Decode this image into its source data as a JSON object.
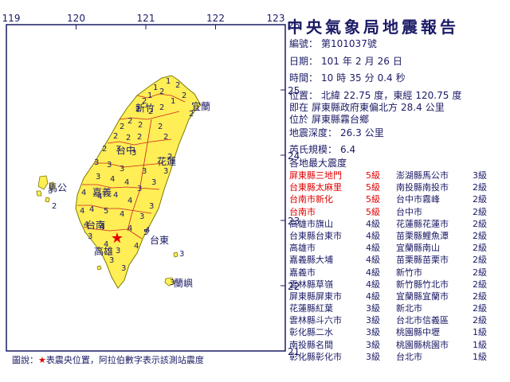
{
  "title": "中央氣象局地震報告",
  "report": {
    "number_label": "編號：",
    "number": "第101037號",
    "date_label": "日期：",
    "year": "101",
    "year_unit": "年",
    "month": "2",
    "month_unit": "月",
    "day": "26",
    "day_unit": "日",
    "time_label": "時間：",
    "hour": "10",
    "hour_unit": "時",
    "minute": "35",
    "minute_unit": "分",
    "second": "0.4",
    "second_unit": "秒",
    "position_label": "位置：",
    "lat_text": "北緯",
    "lat": "22.75",
    "lat_unit": "度，東經",
    "lon": "120.75",
    "lon_unit": "度",
    "rel_prefix": "即在",
    "rel_place": "屏東縣政府東偏北方",
    "rel_dist": "28.4",
    "rel_unit": "公里",
    "at_prefix": "位於",
    "at_place": "屏東縣霧台鄉",
    "depth_label": "地震深度：",
    "depth": "26.3",
    "depth_unit": "公里",
    "mag_label": "芮氏規模：",
    "magnitude": "6.4",
    "intensity_header": "各地最大震度"
  },
  "intensities": [
    {
      "l_name": "屏東縣三地門",
      "l_val": "5級",
      "l_red": true,
      "r_name": "澎湖縣馬公市",
      "r_val": "3級"
    },
    {
      "l_name": "台東縣太麻里",
      "l_val": "5級",
      "l_red": true,
      "r_name": "南投縣南投市",
      "r_val": "2級"
    },
    {
      "l_name": "台南市新化",
      "l_val": "5級",
      "l_red": true,
      "r_name": "台中市霧峰",
      "r_val": "2級"
    },
    {
      "l_name": "台南市",
      "l_val": "5級",
      "l_red": true,
      "r_name": "台中市",
      "r_val": "2級"
    },
    {
      "l_name": "高雄市旗山",
      "l_val": "4級",
      "l_red": false,
      "r_name": "花蓮縣花蓮市",
      "r_val": "2級"
    },
    {
      "l_name": "台東縣台東市",
      "l_val": "4級",
      "l_red": false,
      "r_name": "苗栗縣鯉魚潭",
      "r_val": "2級"
    },
    {
      "l_name": "高雄市",
      "l_val": "4級",
      "l_red": false,
      "r_name": "宜蘭縣南山",
      "r_val": "2級"
    },
    {
      "l_name": "嘉義縣大埔",
      "l_val": "4級",
      "l_red": false,
      "r_name": "苗栗縣苗栗市",
      "r_val": "2級"
    },
    {
      "l_name": "嘉義市",
      "l_val": "4級",
      "l_red": false,
      "r_name": "新竹市",
      "r_val": "2級"
    },
    {
      "l_name": "雲林縣草嶺",
      "l_val": "4級",
      "l_red": false,
      "r_name": "新竹縣竹北市",
      "r_val": "2級"
    },
    {
      "l_name": "屏東縣屏東市",
      "l_val": "4級",
      "l_red": false,
      "r_name": "宜蘭縣宜蘭市",
      "r_val": "2級"
    },
    {
      "l_name": "花蓮縣紅葉",
      "l_val": "3級",
      "l_red": false,
      "r_name": "新北市",
      "r_val": "2級"
    },
    {
      "l_name": "雲林縣斗六市",
      "l_val": "3級",
      "l_red": false,
      "r_name": "台北市信義區",
      "r_val": "2級"
    },
    {
      "l_name": "彰化縣二水",
      "l_val": "3級",
      "l_red": false,
      "r_name": "桃園縣中壢",
      "r_val": "1級"
    },
    {
      "l_name": "南投縣名間",
      "l_val": "3級",
      "l_red": false,
      "r_name": "桃園縣桃園市",
      "r_val": "1級"
    },
    {
      "l_name": "彰化縣彰化市",
      "l_val": "3級",
      "l_red": false,
      "r_name": "台北市",
      "r_val": "1級"
    }
  ],
  "map": {
    "lon_ticks": [
      "119",
      "120",
      "121",
      "122",
      "123"
    ],
    "lat_ticks": [
      "26",
      "25",
      "24",
      "23",
      "22",
      "21"
    ],
    "lon_range": [
      119,
      123
    ],
    "lat_range": [
      21,
      26
    ],
    "epicenter": {
      "lat": 22.75,
      "lon": 120.75
    },
    "city_labels": [
      "新竹",
      "宜蘭",
      "台中",
      "花蓮",
      "嘉義",
      "台南",
      "高雄",
      "台東",
      "馬公",
      "蘭嶼"
    ],
    "colors": {
      "land": "#ffee55",
      "coast": "#7a7a00",
      "sea": "#ffffff",
      "county_line": "#cc2222",
      "numbers": "#1a1a66",
      "epicenter": "#e00000"
    }
  },
  "legend": {
    "prefix": "圖說：",
    "star": "★",
    "text": "表震央位置，阿拉伯數字表示該測站震度"
  }
}
